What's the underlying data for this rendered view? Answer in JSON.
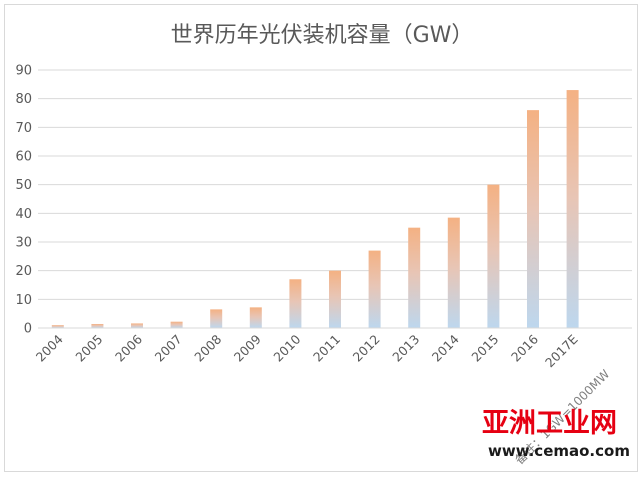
{
  "chart_data": {
    "type": "bar",
    "title": "世界历年光伏装机容量（GW）",
    "categories": [
      "2004",
      "2005",
      "2006",
      "2007",
      "2008",
      "2009",
      "2010",
      "2011",
      "2012",
      "2013",
      "2014",
      "2015",
      "2016",
      "2017E"
    ],
    "values": [
      1.0,
      1.4,
      1.6,
      2.2,
      6.5,
      7.2,
      17,
      20,
      27,
      35,
      38.5,
      50,
      76,
      83
    ],
    "ylim": [
      0,
      90
    ],
    "yticks": [
      0,
      10,
      20,
      30,
      40,
      50,
      60,
      70,
      80,
      90
    ],
    "grid": true,
    "note": "备注：1GW=1000MW",
    "colors": {
      "bar_top": "#f4b183",
      "bar_bottom": "#bdd7ee",
      "grid": "#d9d9d9",
      "text": "#595959"
    }
  },
  "watermark": {
    "text": "亚洲工业网",
    "url": "www.cemao.com"
  }
}
